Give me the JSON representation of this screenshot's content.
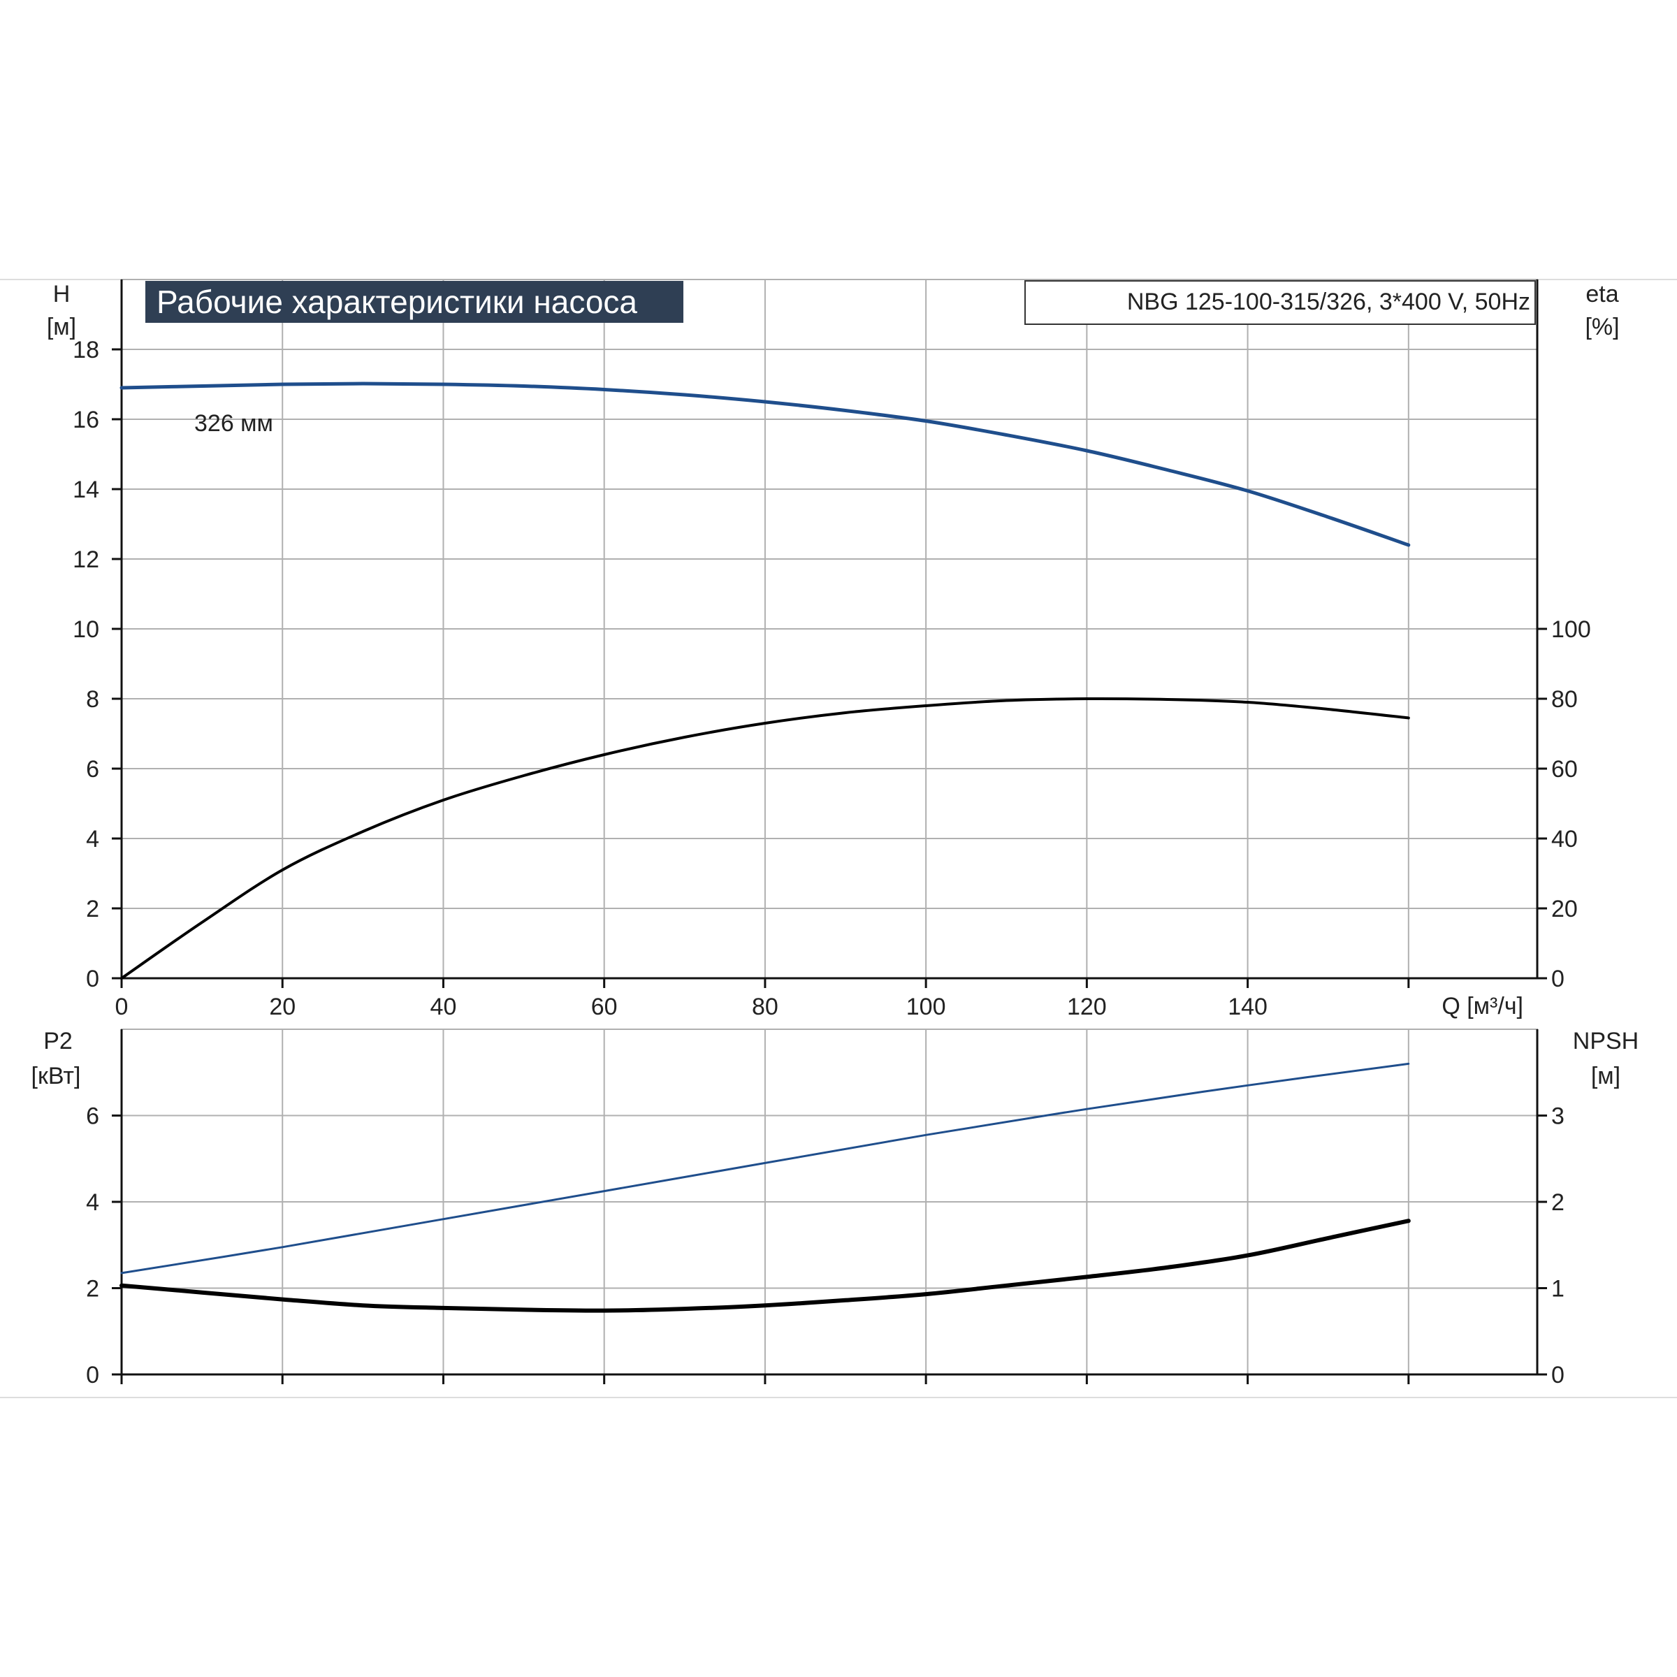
{
  "title": "Рабочие характеристики насоса",
  "model_label": "NBG 125-100-315/326, 3*400 V, 50Hz",
  "curve_label": "326 мм",
  "colors": {
    "head_curve": "#1f4e8c",
    "power_curve": "#1f4e8c",
    "efficiency_curve": "#000000",
    "npsh_curve": "#000000",
    "title_bg": "#2f3f54",
    "grid": "#b0b0b0"
  },
  "chart_data": [
    {
      "type": "line",
      "x_axis": {
        "label": "Q [м³/ч]",
        "ticks": [
          "0",
          "20",
          "40",
          "60",
          "80",
          "100",
          "120",
          "140"
        ],
        "range": [
          0,
          176
        ]
      },
      "y_axis_left": {
        "label_line1": "H",
        "label_line2": "[м]",
        "ticks": [
          "0",
          "2",
          "4",
          "6",
          "8",
          "10",
          "12",
          "14",
          "16",
          "18"
        ],
        "range": [
          0,
          20
        ]
      },
      "y_axis_right": {
        "label_line1": "eta",
        "label_line2": "[%]",
        "ticks": [
          "0",
          "20",
          "40",
          "60",
          "80",
          "100"
        ],
        "range": [
          0,
          200
        ]
      },
      "grid": true,
      "series": [
        {
          "name": "326 мм",
          "axis": "left",
          "x": [
            0,
            10,
            20,
            30,
            40,
            50,
            60,
            70,
            80,
            90,
            100,
            110,
            120,
            130,
            140,
            150,
            160
          ],
          "y": [
            16.9,
            16.95,
            17.0,
            17.02,
            17.0,
            16.95,
            16.85,
            16.7,
            16.5,
            16.25,
            15.95,
            15.55,
            15.1,
            14.55,
            13.95,
            13.2,
            12.4
          ]
        },
        {
          "axis": "right",
          "x": [
            0,
            10,
            20,
            30,
            40,
            50,
            60,
            70,
            80,
            90,
            100,
            110,
            120,
            130,
            140,
            150,
            160
          ],
          "y": [
            0,
            16,
            31,
            42,
            51,
            58,
            64,
            69,
            73,
            76,
            78,
            79.5,
            80,
            79.8,
            79,
            77,
            74.5
          ]
        }
      ]
    },
    {
      "type": "line",
      "x_axis": {
        "range": [
          0,
          176
        ]
      },
      "y_axis_left": {
        "label_line1": "P2",
        "label_line2": "[кВт]",
        "ticks": [
          "0",
          "2",
          "4",
          "6"
        ],
        "range": [
          0,
          8
        ]
      },
      "y_axis_right": {
        "label_line1": "NPSH",
        "label_line2": "[м]",
        "ticks": [
          "0",
          "1",
          "2",
          "3"
        ],
        "range": [
          0,
          4
        ]
      },
      "grid": true,
      "series": [
        {
          "axis": "left",
          "x": [
            0,
            20,
            40,
            60,
            80,
            100,
            120,
            140,
            160
          ],
          "y": [
            2.35,
            2.95,
            3.6,
            4.25,
            4.9,
            5.55,
            6.15,
            6.7,
            7.2
          ]
        },
        {
          "axis": "right",
          "x": [
            0,
            10,
            20,
            30,
            40,
            50,
            60,
            70,
            80,
            90,
            100,
            110,
            120,
            130,
            140,
            150,
            160
          ],
          "y": [
            1.03,
            0.95,
            0.87,
            0.8,
            0.77,
            0.75,
            0.74,
            0.76,
            0.8,
            0.86,
            0.93,
            1.03,
            1.13,
            1.24,
            1.38,
            1.58,
            1.78
          ]
        }
      ]
    }
  ]
}
